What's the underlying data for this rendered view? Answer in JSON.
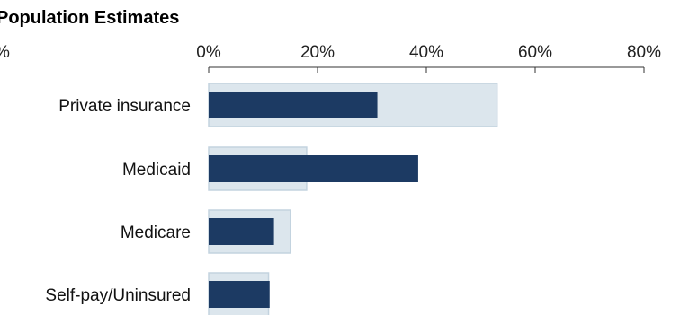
{
  "chart_data": {
    "type": "bar",
    "orientation": "horizontal",
    "title": "Population Estimates",
    "left_tick_fragment": "%",
    "x_ticks": [
      "0%",
      "20%",
      "40%",
      "60%",
      "80%"
    ],
    "x_tick_values": [
      0,
      20,
      40,
      60,
      80
    ],
    "xlim": [
      0,
      80
    ],
    "x_axis_position": "top",
    "grid": false,
    "categories": [
      "Private insurance",
      "Medicaid",
      "Medicare",
      "Self-pay/Uninsured"
    ],
    "series": [
      {
        "values": [
          53,
          18,
          15,
          11
        ],
        "color": "#dce6ed",
        "border_color": "#c3d3df"
      },
      {
        "values": [
          31,
          38.5,
          12,
          11.2
        ],
        "color": "#1c3a63"
      }
    ]
  }
}
